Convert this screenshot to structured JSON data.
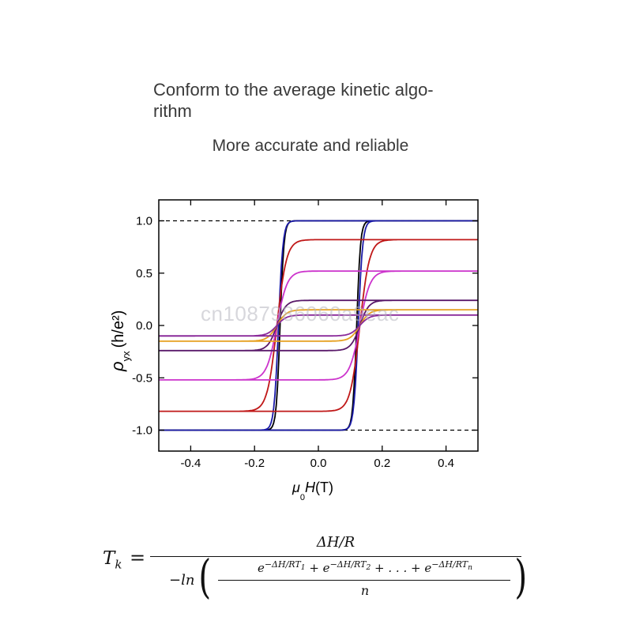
{
  "header": {
    "headline": "Conform to the average kinetic algo-\nrithm",
    "subline": "More accurate and reliable"
  },
  "watermark": {
    "text": "cn1087986060a9eac"
  },
  "chart_data": {
    "type": "line",
    "xlim": [
      -0.5,
      0.5
    ],
    "ylim": [
      -1.2,
      1.2
    ],
    "x_ticks": [
      -0.4,
      -0.2,
      0.0,
      0.2,
      0.4
    ],
    "x_tick_labels": [
      "-0.4",
      "-0.2",
      "0.0",
      "0.2",
      "0.4"
    ],
    "y_ticks": [
      -1.0,
      -0.5,
      0.0,
      0.5,
      1.0
    ],
    "y_tick_labels": [
      "-1.0",
      "-0.5",
      "0.0",
      "0.5",
      "1.0"
    ],
    "xlabel": {
      "main": "μ",
      "sub": "0",
      "italic": "H",
      "unit": "(T)"
    },
    "ylabel": {
      "main": "ρ",
      "sub": "yx",
      "unit": "(h/e²)"
    },
    "reference_lines": [
      1.0,
      -1.0
    ],
    "grid": false,
    "legend": "none",
    "series": [
      {
        "color": "#000000",
        "saturation": 1.0,
        "coercive_field": 0.12,
        "width": 0.012
      },
      {
        "color": "#1a1aa8",
        "saturation": 1.0,
        "coercive_field": 0.125,
        "width": 0.014
      },
      {
        "color": "#c01818",
        "saturation": 0.82,
        "coercive_field": 0.13,
        "width": 0.03
      },
      {
        "color": "#cc33cc",
        "saturation": 0.52,
        "coercive_field": 0.13,
        "width": 0.032
      },
      {
        "color": "#5a1a6a",
        "saturation": 0.24,
        "coercive_field": 0.13,
        "width": 0.028
      },
      {
        "color": "#e6a020",
        "saturation": 0.15,
        "coercive_field": 0.13,
        "width": 0.03
      },
      {
        "color": "#8a2a9a",
        "saturation": 0.1,
        "coercive_field": 0.13,
        "width": 0.03
      }
    ]
  },
  "formula": {
    "lhs": "T",
    "lhs_sub": "k",
    "equals": "=",
    "numerator": "ΔH/R",
    "denominator_prefix": "−ln",
    "open_paren": "(",
    "close_paren": ")",
    "term1": "e",
    "term1_exp": "−ΔH/RT",
    "term1_sub": "1",
    "plus1": " + ",
    "term2": "e",
    "term2_exp": "−ΔH/RT",
    "term2_sub": "2",
    "plus2": " + . . . + ",
    "termn": "e",
    "termn_exp": "−ΔH/RT",
    "termn_sub": "n",
    "inner_denominator": "n"
  }
}
